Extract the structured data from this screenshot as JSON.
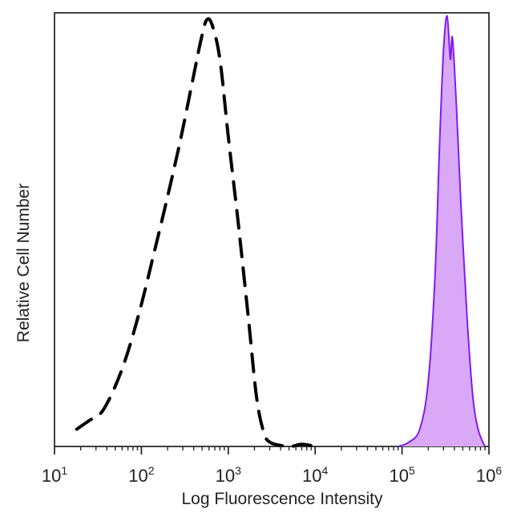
{
  "chart_data": {
    "type": "area",
    "xlabel": "Log Fluorescence Intensity",
    "ylabel": "Relative Cell Number",
    "x_scale": "log",
    "xlim": [
      10,
      1000000
    ],
    "ylim": [
      0,
      1
    ],
    "x_ticks": [
      {
        "base": "10",
        "exp": "1"
      },
      {
        "base": "10",
        "exp": "2"
      },
      {
        "base": "10",
        "exp": "3"
      },
      {
        "base": "10",
        "exp": "4"
      },
      {
        "base": "10",
        "exp": "5"
      },
      {
        "base": "10",
        "exp": "6"
      }
    ],
    "series": [
      {
        "style": "dashed-line",
        "color": "#000000",
        "points": [
          [
            18,
            0.04
          ],
          [
            25,
            0.06
          ],
          [
            35,
            0.08
          ],
          [
            50,
            0.14
          ],
          [
            70,
            0.22
          ],
          [
            100,
            0.33
          ],
          [
            140,
            0.45
          ],
          [
            200,
            0.58
          ],
          [
            280,
            0.71
          ],
          [
            380,
            0.84
          ],
          [
            480,
            0.94
          ],
          [
            560,
            0.99
          ],
          [
            650,
            0.98
          ],
          [
            800,
            0.9
          ],
          [
            1000,
            0.72
          ],
          [
            1300,
            0.52
          ],
          [
            1700,
            0.3
          ],
          [
            2100,
            0.12
          ],
          [
            2500,
            0.04
          ],
          [
            3000,
            0.01
          ],
          [
            5000,
            0.0
          ],
          [
            7000,
            0.005
          ],
          [
            10000,
            0.0
          ]
        ]
      },
      {
        "style": "filled",
        "color": "#7f1cf2",
        "fill": "#d9a9f7",
        "points": [
          [
            90000,
            0.0
          ],
          [
            120000,
            0.01
          ],
          [
            160000,
            0.04
          ],
          [
            200000,
            0.15
          ],
          [
            240000,
            0.4
          ],
          [
            270000,
            0.7
          ],
          [
            300000,
            0.92
          ],
          [
            330000,
            1.0
          ],
          [
            360000,
            0.9
          ],
          [
            380000,
            0.95
          ],
          [
            420000,
            0.8
          ],
          [
            480000,
            0.55
          ],
          [
            560000,
            0.3
          ],
          [
            650000,
            0.12
          ],
          [
            750000,
            0.04
          ],
          [
            900000,
            0.0
          ]
        ]
      }
    ]
  }
}
